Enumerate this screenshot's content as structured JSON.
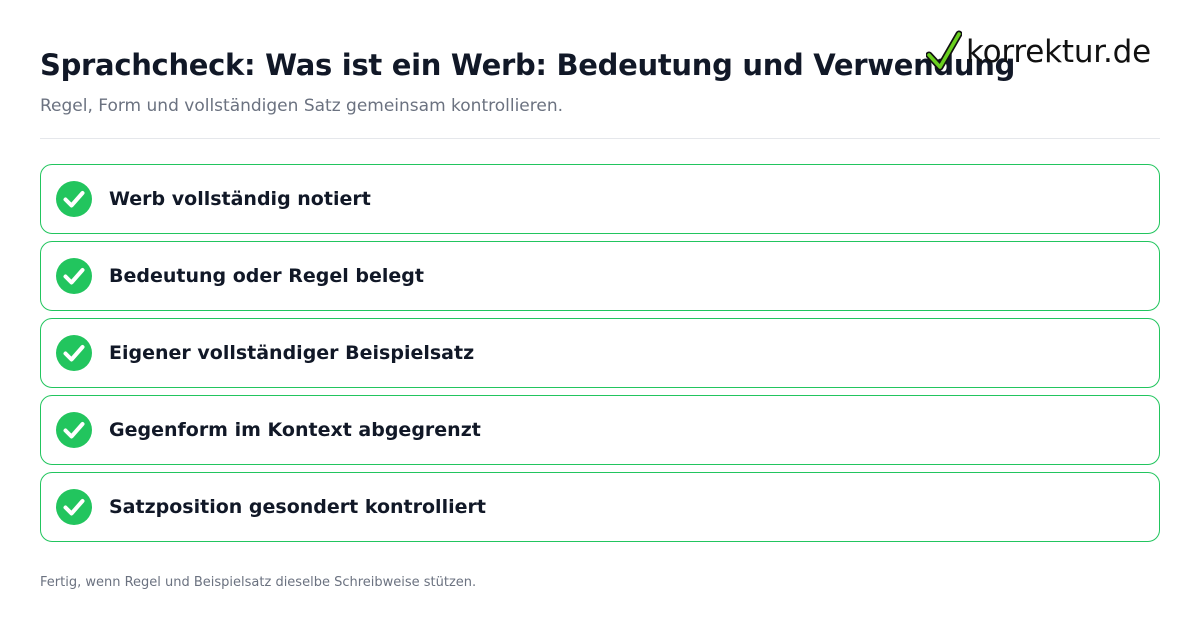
{
  "header": {
    "title": "Sprachcheck: Was ist ein Werb: Bedeutung und Verwendung",
    "subtitle": "Regel, Form und vollständigen Satz gemeinsam kontrollieren."
  },
  "logo": {
    "text": "korrektur.de",
    "icon": "check-mark-icon",
    "check_color": "#6ad01f",
    "outline_color": "#111111"
  },
  "checklist": {
    "items": [
      {
        "label": "Werb vollständig notiert",
        "checked": true
      },
      {
        "label": "Bedeutung oder Regel belegt",
        "checked": true
      },
      {
        "label": "Eigener vollständiger Beispielsatz",
        "checked": true
      },
      {
        "label": "Gegenform im Kontext abgegrenzt",
        "checked": true
      },
      {
        "label": "Satzposition gesondert kontrolliert",
        "checked": true
      }
    ]
  },
  "footer": {
    "text": "Fertig, wenn Regel und Beispielsatz dieselbe Schreibweise stützen."
  },
  "colors": {
    "accent": "#22c55e",
    "text": "#111827",
    "muted": "#6b7280",
    "divider": "#e5e7eb"
  }
}
